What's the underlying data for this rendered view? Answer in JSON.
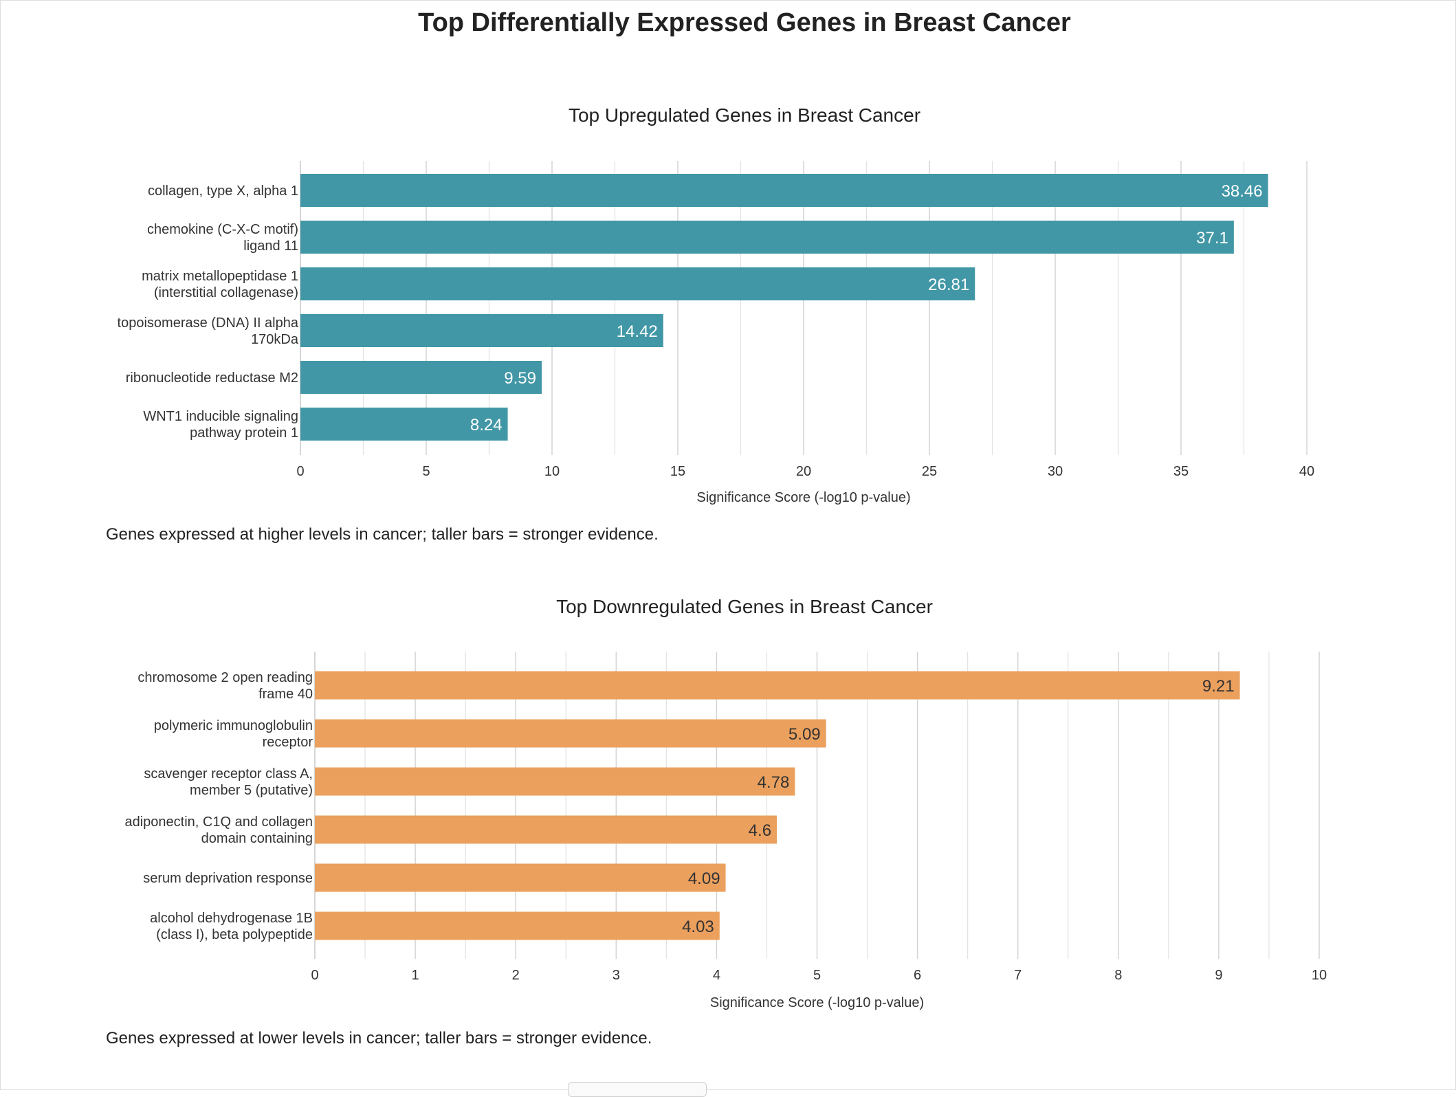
{
  "page": {
    "title": "Top Differentially Expressed Genes in Breast Cancer"
  },
  "chart_data": [
    {
      "type": "bar",
      "orientation": "horizontal",
      "title": "Top Upregulated Genes in Breast Cancer",
      "xlabel": "Significance Score (-log10 p-value)",
      "ylabel": "",
      "xlim": [
        0,
        40
      ],
      "xticks": [
        0,
        5,
        10,
        15,
        20,
        25,
        30,
        35,
        40
      ],
      "grid": true,
      "color": "#4197a6",
      "label_color": "#ffffff",
      "categories": [
        [
          "collagen, type X, alpha 1"
        ],
        [
          "chemokine (C-X-C motif)",
          "ligand 11"
        ],
        [
          "matrix metallopeptidase 1",
          "(interstitial collagenase)"
        ],
        [
          "topoisomerase (DNA) II alpha",
          "170kDa"
        ],
        [
          "ribonucleotide reductase M2"
        ],
        [
          "WNT1 inducible signaling",
          "pathway protein 1"
        ]
      ],
      "values": [
        38.46,
        37.1,
        26.81,
        14.42,
        9.59,
        8.24
      ],
      "caption": "Genes expressed at higher levels in cancer; taller bars = stronger evidence."
    },
    {
      "type": "bar",
      "orientation": "horizontal",
      "title": "Top Downregulated Genes in Breast Cancer",
      "xlabel": "Significance Score (-log10 p-value)",
      "ylabel": "",
      "xlim": [
        0,
        10
      ],
      "xticks": [
        0,
        1,
        2,
        3,
        4,
        5,
        6,
        7,
        8,
        9,
        10
      ],
      "grid": true,
      "color": "#eba05e",
      "label_color": "#333333",
      "categories": [
        [
          "chromosome 2 open reading",
          "frame 40"
        ],
        [
          "polymeric immunoglobulin",
          "receptor"
        ],
        [
          "scavenger receptor class A,",
          "member 5 (putative)"
        ],
        [
          "adiponectin, C1Q and collagen",
          "domain containing"
        ],
        [
          "serum deprivation response"
        ],
        [
          "alcohol dehydrogenase 1B",
          "(class I), beta polypeptide"
        ]
      ],
      "values": [
        9.21,
        5.09,
        4.78,
        4.6,
        4.09,
        4.03
      ],
      "caption": "Genes expressed at lower levels in cancer; taller bars = stronger evidence."
    }
  ]
}
